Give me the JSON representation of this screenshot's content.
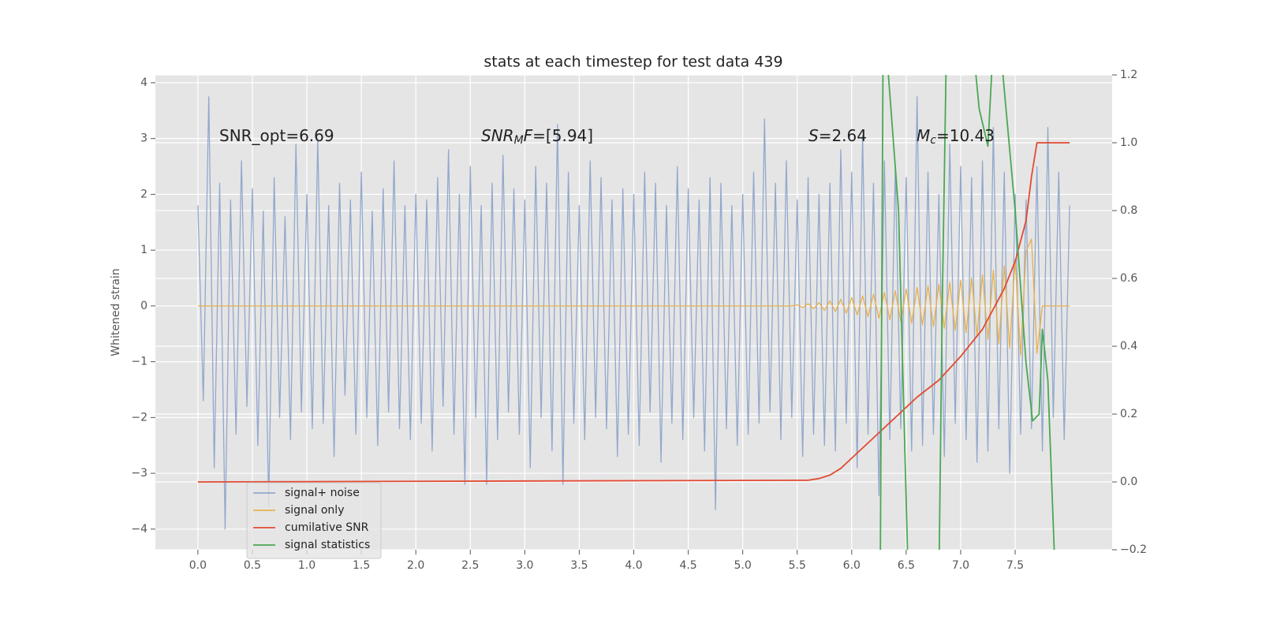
{
  "chart_data": {
    "type": "line",
    "title": "stats at each timestep for test data 439",
    "ylabel": "Whitened strain",
    "annotations": [
      {
        "parts": [
          {
            "text": "SNR_opt=6.69"
          }
        ]
      },
      {
        "parts": [
          {
            "text": "SNR",
            "italic": true
          },
          {
            "text": "M",
            "italic": true,
            "sub": true
          },
          {
            "text": "F",
            "italic": true
          },
          {
            "text": "=[5.94]"
          }
        ]
      },
      {
        "parts": [
          {
            "text": "S",
            "italic": true
          },
          {
            "text": "=2.64"
          }
        ]
      },
      {
        "parts": [
          {
            "text": "M",
            "italic": true
          },
          {
            "text": "c",
            "italic": true,
            "sub": true
          },
          {
            "text": "=10.43"
          }
        ]
      }
    ],
    "xlim": [
      -0.39,
      8.39
    ],
    "ylim": [
      -4.37,
      4.14
    ],
    "y2lim": [
      -0.2,
      1.2
    ],
    "xticks": [
      {
        "value": 0,
        "label": "0.0"
      },
      {
        "value": 0.5,
        "label": "0.5"
      },
      {
        "value": 1,
        "label": "1.0"
      },
      {
        "value": 1.5,
        "label": "1.5"
      },
      {
        "value": 2,
        "label": "2.0"
      },
      {
        "value": 2.5,
        "label": "2.5"
      },
      {
        "value": 3,
        "label": "3.0"
      },
      {
        "value": 3.5,
        "label": "3.5"
      },
      {
        "value": 4,
        "label": "4.0"
      },
      {
        "value": 4.5,
        "label": "4.5"
      },
      {
        "value": 5,
        "label": "5.0"
      },
      {
        "value": 5.5,
        "label": "5.5"
      },
      {
        "value": 6,
        "label": "6.0"
      },
      {
        "value": 6.5,
        "label": "6.5"
      },
      {
        "value": 7,
        "label": "7.0"
      },
      {
        "value": 7.5,
        "label": "7.5"
      }
    ],
    "yticks": [
      {
        "value": -4,
        "label": "−4"
      },
      {
        "value": -3,
        "label": "−3"
      },
      {
        "value": -2,
        "label": "−2"
      },
      {
        "value": -1,
        "label": "−1"
      },
      0,
      1,
      2,
      3,
      4
    ],
    "y2ticks": [
      {
        "value": -0.2,
        "label": "−0.2"
      },
      {
        "value": 0,
        "label": "0.0"
      },
      0.2,
      0.4,
      0.6,
      0.8,
      {
        "value": 1,
        "label": "1.0"
      },
      1.2
    ],
    "grid": true,
    "legend": "lower left",
    "x": [
      0,
      0.05,
      0.1,
      0.15,
      0.2,
      0.25,
      0.3,
      0.35,
      0.4,
      0.45,
      0.5,
      0.55,
      0.6,
      0.65,
      0.7,
      0.75,
      0.8,
      0.85,
      0.9,
      0.95,
      1,
      1.05,
      1.1,
      1.15,
      1.2,
      1.25,
      1.3,
      1.35,
      1.4,
      1.45,
      1.5,
      1.55,
      1.6,
      1.65,
      1.7,
      1.75,
      1.8,
      1.85,
      1.9,
      1.95,
      2,
      2.05,
      2.1,
      2.15,
      2.2,
      2.25,
      2.3,
      2.35,
      2.4,
      2.45,
      2.5,
      2.55,
      2.6,
      2.65,
      2.7,
      2.75,
      2.8,
      2.85,
      2.9,
      2.95,
      3,
      3.05,
      3.1,
      3.15,
      3.2,
      3.25,
      3.3,
      3.35,
      3.4,
      3.45,
      3.5,
      3.55,
      3.6,
      3.65,
      3.7,
      3.75,
      3.8,
      3.85,
      3.9,
      3.95,
      4,
      4.05,
      4.1,
      4.15,
      4.2,
      4.25,
      4.3,
      4.35,
      4.4,
      4.45,
      4.5,
      4.55,
      4.6,
      4.65,
      4.7,
      4.75,
      4.8,
      4.85,
      4.9,
      4.95,
      5,
      5.05,
      5.1,
      5.15,
      5.2,
      5.25,
      5.3,
      5.35,
      5.4,
      5.45,
      5.5,
      5.55,
      5.6,
      5.65,
      5.7,
      5.75,
      5.8,
      5.85,
      5.9,
      5.95,
      6,
      6.05,
      6.1,
      6.15,
      6.2,
      6.25,
      6.3,
      6.35,
      6.4,
      6.45,
      6.5,
      6.55,
      6.6,
      6.65,
      6.7,
      6.75,
      6.8,
      6.85,
      6.9,
      6.95,
      7,
      7.05,
      7.1,
      7.15,
      7.2,
      7.25,
      7.3,
      7.35,
      7.4,
      7.45,
      7.5,
      7.55,
      7.6,
      7.65,
      7.7,
      7.75,
      7.8,
      7.85,
      7.9,
      7.95,
      8
    ],
    "series": [
      {
        "name": "signal+ noise",
        "color": "#92a8cd",
        "values": [
          1.8,
          -1.7,
          3.75,
          -2.9,
          2.2,
          -4.0,
          1.9,
          -2.3,
          2.6,
          -1.8,
          2.1,
          -2.5,
          1.7,
          -3.6,
          2.3,
          -2.0,
          1.6,
          -2.4,
          2.9,
          -1.9,
          2.0,
          -2.2,
          3.0,
          -2.1,
          1.8,
          -2.7,
          2.2,
          -1.6,
          1.9,
          -2.3,
          2.4,
          -2.0,
          1.7,
          -2.5,
          2.1,
          -1.9,
          2.6,
          -2.2,
          1.8,
          -2.4,
          2.0,
          -2.1,
          1.9,
          -2.6,
          2.3,
          -1.8,
          2.8,
          -2.3,
          2.0,
          -3.2,
          2.5,
          -2.0,
          1.8,
          -3.2,
          2.2,
          -2.4,
          2.7,
          -1.9,
          2.1,
          -2.3,
          1.9,
          -2.9,
          2.5,
          -2.0,
          2.2,
          -2.6,
          3.25,
          -3.2,
          2.4,
          -2.1,
          1.8,
          -2.4,
          2.6,
          -2.0,
          2.3,
          -2.2,
          1.9,
          -2.7,
          2.1,
          -2.3,
          2.0,
          -2.5,
          2.4,
          -1.9,
          2.2,
          -2.8,
          1.8,
          -2.1,
          2.5,
          -2.4,
          2.1,
          -2.0,
          1.9,
          -2.6,
          2.3,
          -3.65,
          2.2,
          -2.2,
          1.8,
          -2.5,
          2.0,
          -2.3,
          2.4,
          -2.1,
          3.35,
          -1.9,
          2.2,
          -2.4,
          2.6,
          -2.0,
          1.9,
          -2.7,
          2.3,
          -2.3,
          2.0,
          -2.5,
          2.2,
          -2.6,
          2.8,
          -2.1,
          2.4,
          -2.9,
          3.05,
          -2.3,
          2.2,
          -3.4,
          2.6,
          -2.4,
          2.5,
          -2.2,
          2.3,
          -2.6,
          3.75,
          -2.5,
          2.4,
          -2.3,
          2.0,
          -2.7,
          2.9,
          -2.1,
          2.5,
          -2.4,
          2.3,
          -2.8,
          2.6,
          -2.6,
          3.2,
          -2.2,
          2.4,
          -3.0,
          2.0,
          -2.3,
          1.9,
          -2.2,
          2.5,
          -2.6,
          3.2,
          -2.0,
          2.4,
          -2.4,
          1.8
        ]
      },
      {
        "name": "signal only",
        "color": "#e8b04a",
        "values": [
          0,
          0,
          0,
          0,
          0,
          0,
          0,
          0,
          0,
          0,
          0,
          0,
          0,
          0,
          0,
          0,
          0,
          0,
          0,
          0,
          0,
          0,
          0,
          0,
          0,
          0,
          0,
          0,
          0,
          0,
          0,
          0,
          0,
          0,
          0,
          0,
          0,
          0,
          0,
          0,
          0,
          0,
          0,
          0,
          0,
          0,
          0,
          0,
          0,
          0,
          0,
          0,
          0,
          0,
          0,
          0,
          0,
          0,
          0,
          0,
          0,
          0,
          0,
          0,
          0,
          0,
          0,
          0,
          0,
          0,
          0,
          0,
          0,
          0,
          0,
          0,
          0,
          0,
          0,
          0,
          0,
          0,
          0,
          0,
          0,
          0,
          0,
          0,
          0,
          0,
          0,
          0,
          0,
          0,
          0,
          0,
          0,
          0,
          0,
          0,
          0,
          0,
          0,
          0,
          0,
          0,
          0,
          0,
          0,
          0,
          0.02,
          -0.03,
          0.04,
          -0.05,
          0.06,
          -0.08,
          0.09,
          -0.1,
          0.12,
          -0.13,
          0.15,
          -0.16,
          0.18,
          -0.19,
          0.21,
          -0.22,
          0.24,
          -0.25,
          0.27,
          -0.28,
          0.3,
          -0.31,
          0.33,
          -0.34,
          0.36,
          -0.37,
          0.39,
          -0.4,
          0.42,
          -0.44,
          0.46,
          -0.48,
          0.5,
          -0.53,
          0.56,
          -0.6,
          0.64,
          -0.68,
          0.72,
          -0.76,
          0.82,
          -0.88,
          0.98,
          1.2,
          -0.85,
          0,
          0,
          0,
          0,
          0,
          0
        ]
      },
      {
        "name": "cumilative SNR",
        "color": "#e24a33",
        "axis": "y2",
        "x": [
          0,
          5.6,
          5.7,
          5.8,
          5.9,
          6.0,
          6.2,
          6.4,
          6.6,
          6.8,
          7.0,
          7.2,
          7.4,
          7.5,
          7.6,
          7.65,
          7.7,
          8.0
        ],
        "values": [
          0,
          0.005,
          0.01,
          0.02,
          0.04,
          0.07,
          0.13,
          0.19,
          0.25,
          0.3,
          0.37,
          0.45,
          0.57,
          0.65,
          0.77,
          0.9,
          1.0,
          1.0
        ]
      },
      {
        "name": "signal statistics",
        "color": "#4aa853",
        "axis": "y2",
        "x": [
          6.26,
          6.29,
          6.43,
          6.52,
          6.8,
          6.83,
          6.87,
          7.11,
          7.17,
          7.25,
          7.3,
          7.36,
          7.5,
          7.6,
          7.66,
          7.72,
          7.75,
          7.8,
          7.87
        ],
        "values": [
          -0.4,
          1.4,
          0.8,
          -0.3,
          -0.3,
          0.5,
          1.3,
          1.3,
          1.1,
          0.99,
          1.3,
          1.3,
          0.8,
          0.35,
          0.18,
          0.2,
          0.45,
          0.3,
          -0.3
        ]
      }
    ]
  }
}
